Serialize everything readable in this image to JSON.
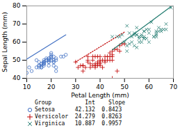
{
  "chart_data": {
    "type": "scatter",
    "xlabel": "Petal Length (mm)",
    "ylabel": "Sepal Length (mm)",
    "xlim": [
      10,
      70
    ],
    "ylim": [
      40,
      80
    ],
    "xticks": [
      10,
      20,
      30,
      40,
      50,
      60,
      70
    ],
    "yticks": [
      40,
      50,
      60,
      70,
      80
    ],
    "grid": false,
    "legend_title": "Group          Int    Slope",
    "series": [
      {
        "name": "Setosa",
        "label": "Setosa      42.132  0.8423",
        "color": "#4472C4",
        "marker": "circle",
        "line_style": "solid",
        "intercept": 42.132,
        "slope": 0.8423,
        "x": [
          14,
          14,
          15,
          15,
          15,
          15,
          16,
          16,
          16,
          16,
          16,
          17,
          17,
          17,
          17,
          17,
          17,
          17,
          17,
          18,
          18,
          18,
          19,
          19,
          19,
          19,
          19,
          19,
          19,
          20,
          20,
          20,
          20,
          20,
          20,
          21,
          21,
          21,
          21,
          21,
          22,
          22,
          22,
          22,
          24,
          25,
          26,
          10,
          11,
          12
        ],
        "y": [
          50,
          46,
          46,
          47,
          47,
          49,
          46,
          46,
          47,
          48,
          48,
          47,
          48,
          48,
          48,
          49,
          49,
          49,
          50,
          50,
          50,
          51,
          47,
          49,
          49,
          50,
          50,
          51,
          51,
          50,
          51,
          52,
          52,
          53,
          54,
          47,
          49,
          49,
          50,
          52,
          44,
          46,
          50,
          51,
          52,
          52,
          53,
          43,
          46,
          44
        ]
      },
      {
        "name": "Versicolor",
        "label": "Versicolor  24.279  0.8263",
        "color": "#C00000",
        "marker": "plus",
        "line_style": "dotted",
        "intercept": 24.279,
        "slope": 0.8263,
        "x": [
          30,
          31,
          32,
          33,
          33,
          33,
          34,
          35,
          35,
          35,
          36,
          36,
          37,
          37,
          37,
          38,
          38,
          38,
          38,
          39,
          39,
          39,
          39,
          40,
          40,
          40,
          40,
          40,
          41,
          41,
          42,
          42,
          42,
          43,
          43,
          44,
          44,
          44,
          45,
          45,
          45,
          45,
          46,
          47,
          47,
          48,
          48,
          49,
          50,
          45
        ],
        "y": [
          49,
          46,
          47,
          44,
          47,
          47,
          46,
          49,
          50,
          52,
          48,
          46,
          47,
          52,
          50,
          48,
          52,
          46,
          47,
          47,
          48,
          49,
          52,
          47,
          48,
          49,
          50,
          52,
          46,
          50,
          49,
          50,
          52,
          50,
          52,
          50,
          52,
          54,
          52,
          53,
          50,
          55,
          56,
          44,
          56,
          58,
          55,
          59,
          59,
          40
        ]
      },
      {
        "name": "Virginica",
        "label": "Virginica   10.887  0.9957",
        "color": "#1F7A6E",
        "marker": "x",
        "line_style": "solid",
        "intercept": 10.887,
        "slope": 0.9957,
        "x": [
          45,
          47,
          48,
          49,
          50,
          51,
          52,
          53,
          54,
          54,
          55,
          55,
          55,
          56,
          56,
          57,
          57,
          58,
          58,
          59,
          60,
          60,
          61,
          62,
          63,
          63,
          64,
          65,
          66,
          67,
          51,
          51,
          52,
          53,
          54,
          55,
          56,
          57,
          58,
          58,
          58,
          59,
          60,
          62,
          63,
          63,
          64,
          65,
          67,
          69
        ],
        "y": [
          63,
          63,
          63,
          64,
          60,
          69,
          65,
          63,
          65,
          64,
          68,
          57,
          64,
          63,
          62,
          63,
          64,
          66,
          66,
          67,
          67,
          65,
          71,
          63,
          65,
          64,
          68,
          66,
          67,
          67,
          58,
          55,
          59,
          60,
          58,
          64,
          60,
          60,
          62,
          63,
          62,
          62,
          60,
          63,
          63,
          66,
          66,
          67,
          70,
          79
        ]
      }
    ]
  }
}
